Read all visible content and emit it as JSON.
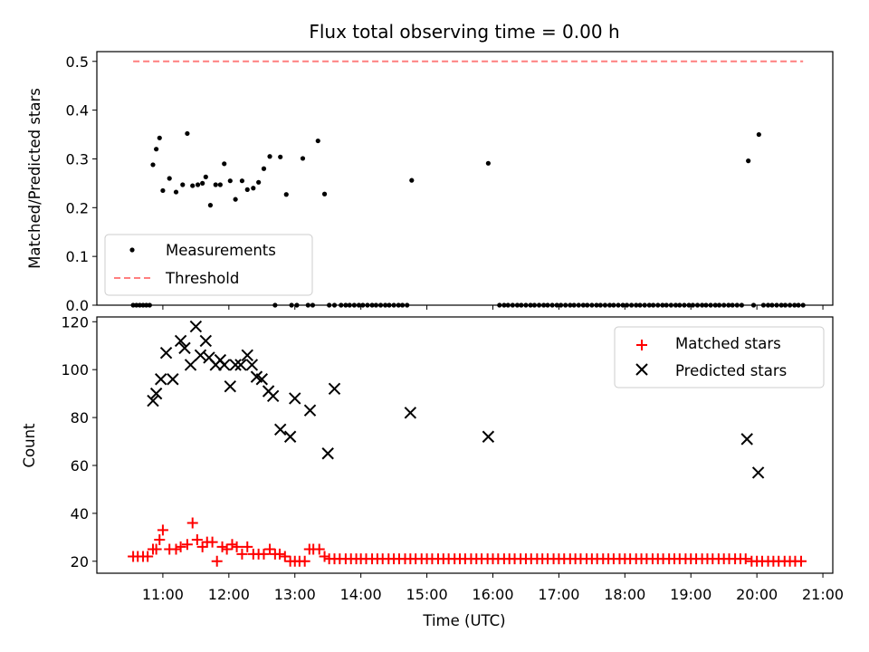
{
  "chart_data": [
    {
      "type": "scatter",
      "title": "Flux total observing time = 0.00 h",
      "xlabel": "",
      "ylabel": "Matched/Predicted stars",
      "xlim": [
        10.0,
        21.15
      ],
      "ylim": [
        0.0,
        0.52
      ],
      "yticks": [
        0.0,
        0.1,
        0.2,
        0.3,
        0.4,
        0.5
      ],
      "ytick_labels": [
        "0.0",
        "0.1",
        "0.2",
        "0.3",
        "0.4",
        "0.5"
      ],
      "legend_position": "lower-left",
      "colors": {
        "measurements": "#000000",
        "threshold": "#ff7f7f"
      },
      "series": [
        {
          "name": "Measurements",
          "kind": "points",
          "x": [
            10.55,
            10.6,
            10.65,
            10.7,
            10.75,
            10.8,
            10.85,
            10.9,
            10.95,
            11.0,
            11.1,
            11.2,
            11.3,
            11.37,
            11.45,
            11.53,
            11.6,
            11.65,
            11.72,
            11.8,
            11.87,
            11.93,
            12.02,
            12.1,
            12.2,
            12.28,
            12.37,
            12.45,
            12.53,
            12.62,
            12.7,
            12.78,
            12.87,
            12.95,
            13.03,
            13.12,
            13.2,
            13.27,
            13.35,
            13.45,
            13.52,
            13.6,
            13.7,
            13.77,
            13.83,
            13.9,
            13.97,
            14.03,
            14.1,
            14.17,
            14.23,
            14.3,
            14.37,
            14.43,
            14.5,
            14.57,
            14.63,
            14.7,
            14.77,
            15.93,
            16.1,
            16.17,
            16.23,
            16.3,
            16.37,
            16.43,
            16.5,
            16.57,
            16.63,
            16.7,
            16.77,
            16.83,
            16.9,
            16.97,
            17.03,
            17.1,
            17.17,
            17.23,
            17.3,
            17.37,
            17.43,
            17.5,
            17.57,
            17.63,
            17.7,
            17.77,
            17.83,
            17.9,
            17.97,
            18.03,
            18.1,
            18.17,
            18.23,
            18.3,
            18.37,
            18.43,
            18.5,
            18.57,
            18.63,
            18.7,
            18.77,
            18.83,
            18.9,
            18.97,
            19.03,
            19.1,
            19.17,
            19.23,
            19.3,
            19.37,
            19.43,
            19.5,
            19.57,
            19.63,
            19.7,
            19.77,
            19.87,
            19.95,
            20.03,
            20.1,
            20.17,
            20.23,
            20.3,
            20.37,
            20.43,
            20.5,
            20.57,
            20.63,
            20.7
          ],
          "y": [
            0.0,
            0.0,
            0.0,
            0.0,
            0.0,
            0.0,
            0.288,
            0.32,
            0.343,
            0.235,
            0.26,
            0.232,
            0.247,
            0.352,
            0.245,
            0.247,
            0.25,
            0.263,
            0.205,
            0.247,
            0.247,
            0.29,
            0.255,
            0.217,
            0.255,
            0.237,
            0.24,
            0.252,
            0.28,
            0.305,
            0.0,
            0.304,
            0.227,
            0.0,
            0.0,
            0.301,
            0.0,
            0.0,
            0.337,
            0.228,
            0.0,
            0.0,
            0.0,
            0.0,
            0.0,
            0.0,
            0.0,
            0.0,
            0.0,
            0.0,
            0.0,
            0.0,
            0.0,
            0.0,
            0.0,
            0.0,
            0.0,
            0.0,
            0.256,
            0.291,
            0.0,
            0.0,
            0.0,
            0.0,
            0.0,
            0.0,
            0.0,
            0.0,
            0.0,
            0.0,
            0.0,
            0.0,
            0.0,
            0.0,
            0.0,
            0.0,
            0.0,
            0.0,
            0.0,
            0.0,
            0.0,
            0.0,
            0.0,
            0.0,
            0.0,
            0.0,
            0.0,
            0.0,
            0.0,
            0.0,
            0.0,
            0.0,
            0.0,
            0.0,
            0.0,
            0.0,
            0.0,
            0.0,
            0.0,
            0.0,
            0.0,
            0.0,
            0.0,
            0.0,
            0.0,
            0.0,
            0.0,
            0.0,
            0.0,
            0.0,
            0.0,
            0.0,
            0.0,
            0.0,
            0.0,
            0.0,
            0.296,
            0.0,
            0.35,
            0.0,
            0.0,
            0.0,
            0.0,
            0.0,
            0.0,
            0.0,
            0.0,
            0.0,
            0.0
          ]
        },
        {
          "name": "Threshold",
          "kind": "dashed-line",
          "x": [
            10.55,
            20.7
          ],
          "y": [
            0.5,
            0.5
          ]
        }
      ]
    },
    {
      "type": "scatter",
      "title": "",
      "xlabel": "Time (UTC)",
      "ylabel": "Count",
      "xlim": [
        10.0,
        21.15
      ],
      "ylim": [
        15,
        122
      ],
      "xticks": [
        11,
        12,
        13,
        14,
        15,
        16,
        17,
        18,
        19,
        20,
        21
      ],
      "xtick_labels": [
        "11:00",
        "12:00",
        "13:00",
        "14:00",
        "15:00",
        "16:00",
        "17:00",
        "18:00",
        "19:00",
        "20:00",
        "21:00"
      ],
      "yticks": [
        20,
        40,
        60,
        80,
        100,
        120
      ],
      "ytick_labels": [
        "20",
        "40",
        "60",
        "80",
        "100",
        "120"
      ],
      "legend_position": "top-right",
      "colors": {
        "matched": "#ff0000",
        "predicted": "#000000"
      },
      "series": [
        {
          "name": "Matched stars",
          "marker": "plus",
          "x": [
            10.55,
            10.62,
            10.7,
            10.77,
            10.85,
            10.9,
            10.95,
            11.0,
            11.1,
            11.2,
            11.27,
            11.37,
            11.45,
            11.52,
            11.6,
            11.67,
            11.75,
            11.82,
            11.9,
            11.97,
            12.05,
            12.12,
            12.2,
            12.28,
            12.37,
            12.45,
            12.53,
            12.62,
            12.7,
            12.77,
            12.85,
            12.93,
            13.0,
            13.07,
            13.15,
            13.22,
            13.28,
            13.37,
            13.45,
            13.52,
            13.6,
            13.68,
            13.77,
            13.85,
            13.93,
            14.0,
            14.08,
            14.17,
            14.25,
            14.33,
            14.42,
            14.5,
            14.58,
            14.67,
            14.75,
            14.83,
            14.92,
            15.0,
            15.08,
            15.17,
            15.25,
            15.33,
            15.42,
            15.5,
            15.58,
            15.67,
            15.75,
            15.83,
            15.92,
            16.0,
            16.08,
            16.17,
            16.25,
            16.33,
            16.42,
            16.5,
            16.58,
            16.67,
            16.75,
            16.83,
            16.92,
            17.0,
            17.08,
            17.17,
            17.25,
            17.33,
            17.42,
            17.5,
            17.58,
            17.67,
            17.75,
            17.83,
            17.92,
            18.0,
            18.08,
            18.17,
            18.25,
            18.33,
            18.42,
            18.5,
            18.58,
            18.67,
            18.75,
            18.83,
            18.92,
            19.0,
            19.08,
            19.17,
            19.25,
            19.33,
            19.42,
            19.5,
            19.58,
            19.67,
            19.75,
            19.83,
            19.92,
            20.0,
            20.08,
            20.17,
            20.25,
            20.33,
            20.42,
            20.5,
            20.58,
            20.67
          ],
          "y": [
            22,
            22,
            22,
            22,
            25,
            25,
            29,
            33,
            25,
            25,
            26,
            27,
            36,
            29,
            26,
            28,
            28,
            20,
            26,
            25,
            27,
            26,
            23,
            26,
            23,
            23,
            23,
            25,
            23,
            23,
            22,
            20,
            20,
            20,
            20,
            25,
            25,
            25,
            22,
            21,
            21,
            21,
            21,
            21,
            21,
            21,
            21,
            21,
            21,
            21,
            21,
            21,
            21,
            21,
            21,
            21,
            21,
            21,
            21,
            21,
            21,
            21,
            21,
            21,
            21,
            21,
            21,
            21,
            21,
            21,
            21,
            21,
            21,
            21,
            21,
            21,
            21,
            21,
            21,
            21,
            21,
            21,
            21,
            21,
            21,
            21,
            21,
            21,
            21,
            21,
            21,
            21,
            21,
            21,
            21,
            21,
            21,
            21,
            21,
            21,
            21,
            21,
            21,
            21,
            21,
            21,
            21,
            21,
            21,
            21,
            21,
            21,
            21,
            21,
            21,
            21,
            20,
            20,
            20,
            20,
            20,
            20,
            20,
            20,
            20,
            20
          ]
        },
        {
          "name": "Predicted stars",
          "marker": "x",
          "x": [
            10.85,
            10.9,
            10.97,
            11.05,
            11.15,
            11.27,
            11.33,
            11.42,
            11.5,
            11.57,
            11.65,
            11.7,
            11.8,
            11.87,
            11.93,
            12.02,
            12.1,
            12.18,
            12.28,
            12.35,
            12.42,
            12.5,
            12.6,
            12.67,
            12.78,
            12.93,
            13.0,
            13.23,
            13.5,
            13.6,
            14.75,
            15.93,
            19.85,
            20.02
          ],
          "y": [
            87,
            90,
            96,
            107,
            96,
            112,
            109,
            102,
            118,
            106,
            112,
            105,
            102,
            104,
            102,
            93,
            102,
            102,
            106,
            102,
            97,
            96,
            91,
            89,
            75,
            72,
            88,
            83,
            65,
            92,
            82,
            72,
            71,
            57
          ]
        }
      ]
    }
  ]
}
